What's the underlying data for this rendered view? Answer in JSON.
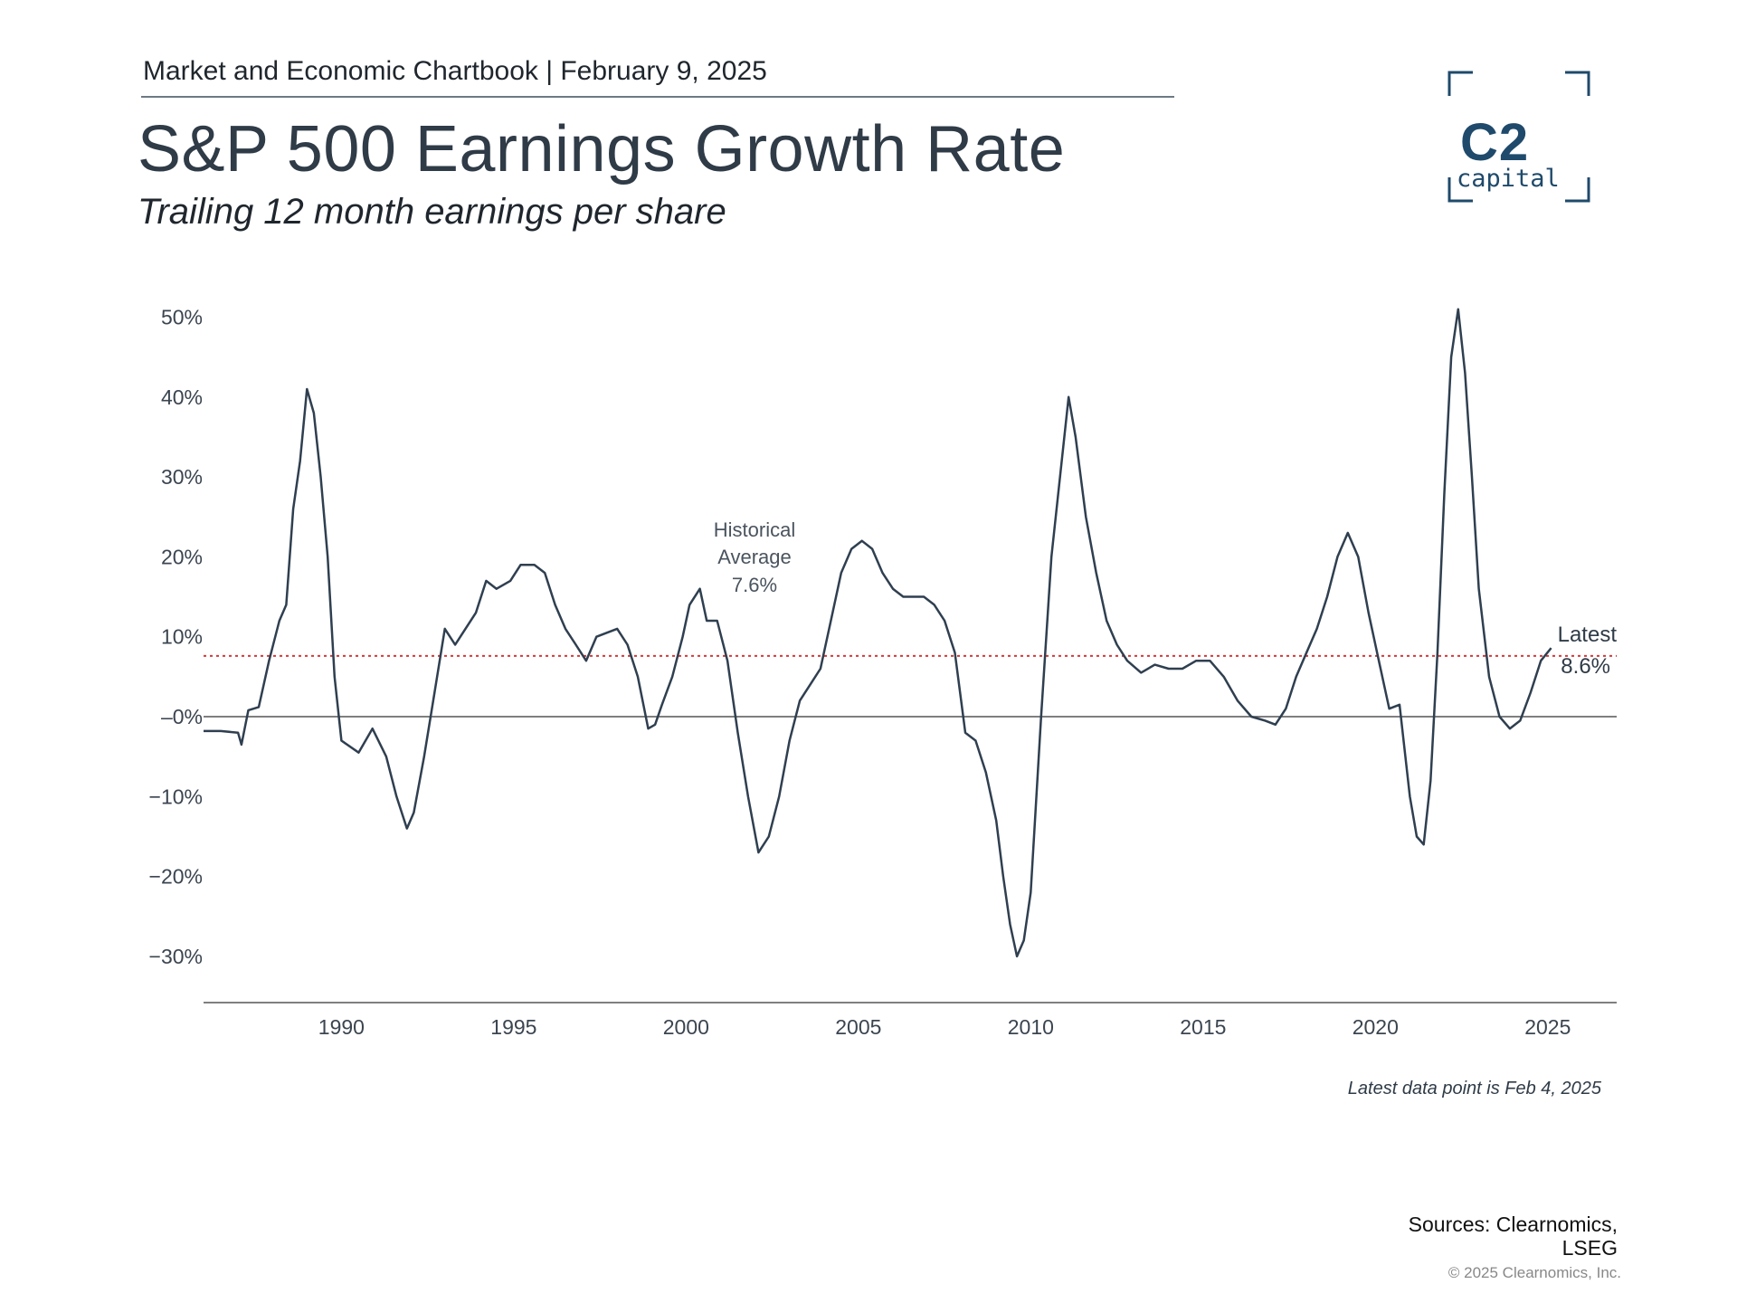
{
  "header": {
    "chartbook": "Market and Economic Chartbook | February 9, 2025",
    "title": "S&P 500 Earnings Growth Rate",
    "subtitle": "Trailing 12 month earnings per share"
  },
  "logo": {
    "mark": "C2",
    "word": "capital",
    "color": "#1f4a6b"
  },
  "colors": {
    "line": "#2f3f50",
    "average": "#d23a3a",
    "axis": "#555555",
    "text": "#2f3b47"
  },
  "chart_data": {
    "type": "line",
    "x_unit": "year",
    "xlim": [
      1986,
      2027
    ],
    "ylim": [
      -35,
      52
    ],
    "x_ticks": [
      1990,
      1995,
      2000,
      2005,
      2010,
      2015,
      2020,
      2025
    ],
    "x_tick_labels": [
      "1990",
      "1995",
      "2000",
      "2005",
      "2010",
      "2015",
      "2020",
      "2025"
    ],
    "y_ticks": [
      50,
      40,
      30,
      20,
      10,
      0,
      -10,
      -20,
      -30
    ],
    "y_tick_labels": [
      "50%",
      "40%",
      "30%",
      "20%",
      "10%",
      "‒0%",
      "−10%",
      "−20%",
      "−30%"
    ],
    "grid": false,
    "zero_line": true,
    "series": [
      {
        "x": [
          1986.0,
          1986.5,
          1987.0,
          1987.1,
          1987.3,
          1987.6,
          1987.9,
          1988.2,
          1988.4,
          1988.6,
          1988.8,
          1989.0,
          1989.2,
          1989.4,
          1989.6,
          1989.8,
          1990.0,
          1990.5,
          1990.9,
          1991.3,
          1991.6,
          1991.9,
          1992.1,
          1992.4,
          1992.7,
          1993.0,
          1993.3,
          1993.6,
          1993.9,
          1994.2,
          1994.5,
          1994.9,
          1995.2,
          1995.6,
          1995.9,
          1996.2,
          1996.5,
          1996.8,
          1997.1,
          1997.4,
          1997.7,
          1998.0,
          1998.3,
          1998.6,
          1998.9,
          1999.1,
          1999.3,
          1999.6,
          1999.9,
          2000.1,
          2000.4,
          2000.6,
          2000.9,
          2001.2,
          2001.5,
          2001.8,
          2002.1,
          2002.4,
          2002.7,
          2003.0,
          2003.3,
          2003.6,
          2003.9,
          2004.2,
          2004.5,
          2004.8,
          2005.1,
          2005.4,
          2005.7,
          2006.0,
          2006.3,
          2006.6,
          2006.9,
          2007.2,
          2007.5,
          2007.8,
          2008.1,
          2008.4,
          2008.7,
          2009.0,
          2009.2,
          2009.4,
          2009.6,
          2009.8,
          2010.0,
          2010.3,
          2010.6,
          2010.9,
          2011.1,
          2011.3,
          2011.6,
          2011.9,
          2012.2,
          2012.5,
          2012.8,
          2013.2,
          2013.6,
          2014.0,
          2014.4,
          2014.8,
          2015.2,
          2015.6,
          2016.0,
          2016.4,
          2016.8,
          2017.1,
          2017.4,
          2017.7,
          2018.0,
          2018.3,
          2018.6,
          2018.9,
          2019.2,
          2019.5,
          2019.8,
          2020.1,
          2020.4,
          2020.7,
          2021.0,
          2021.2,
          2021.4,
          2021.6,
          2021.8,
          2022.0,
          2022.2,
          2022.4,
          2022.6,
          2022.8,
          2023.0,
          2023.3,
          2023.6,
          2023.9,
          2024.2,
          2024.5,
          2024.8,
          2025.1
        ],
        "y": [
          -1.8,
          -1.8,
          -2.0,
          -3.5,
          0.8,
          1.2,
          7.0,
          12.0,
          14.0,
          26.0,
          32.0,
          41.0,
          38.0,
          30.0,
          20.0,
          5.0,
          -3.0,
          -4.5,
          -1.5,
          -5.0,
          -10.0,
          -14.0,
          -12.0,
          -5.0,
          3.0,
          11.0,
          9.0,
          11.0,
          13.0,
          17.0,
          16.0,
          17.0,
          19.0,
          19.0,
          18.0,
          14.0,
          11.0,
          9.0,
          7.0,
          10.0,
          10.5,
          11.0,
          9.0,
          5.0,
          -1.5,
          -1.0,
          1.5,
          5.0,
          10.0,
          14.0,
          16.0,
          12.0,
          12.0,
          7.0,
          -2.0,
          -10.0,
          -17.0,
          -15.0,
          -10.0,
          -3.0,
          2.0,
          4.0,
          6.0,
          12.0,
          18.0,
          21.0,
          22.0,
          21.0,
          18.0,
          16.0,
          15.0,
          15.0,
          15.0,
          14.0,
          12.0,
          8.0,
          -2.0,
          -3.0,
          -7.0,
          -13.0,
          -20.0,
          -26.0,
          -30.0,
          -28.0,
          -22.0,
          0.0,
          20.0,
          32.0,
          40.0,
          35.0,
          25.0,
          18.0,
          12.0,
          9.0,
          7.0,
          5.5,
          6.5,
          6.0,
          6.0,
          7.0,
          7.0,
          5.0,
          2.0,
          0.0,
          -0.5,
          -1.0,
          1.0,
          5.0,
          8.0,
          11.0,
          15.0,
          20.0,
          23.0,
          20.0,
          13.0,
          7.0,
          1.0,
          1.5,
          -10.0,
          -15.0,
          -16.0,
          -8.0,
          8.0,
          28.0,
          45.0,
          51.0,
          43.0,
          30.0,
          16.0,
          5.0,
          0.0,
          -1.5,
          -0.5,
          3.0,
          7.0,
          8.6
        ]
      }
    ],
    "reference_line": {
      "value": 7.6,
      "style": "dotted"
    },
    "annotations": {
      "avg_line1": "Historical",
      "avg_line2": "Average",
      "avg_value": "7.6%",
      "latest_label": "Latest",
      "latest_value": "8.6%"
    },
    "footnote": "Latest data point is Feb 4, 2025"
  },
  "footer": {
    "sources_line1": "Sources: Clearnomics,",
    "sources_line2": "LSEG",
    "copyright": "© 2025 Clearnomics, Inc."
  }
}
